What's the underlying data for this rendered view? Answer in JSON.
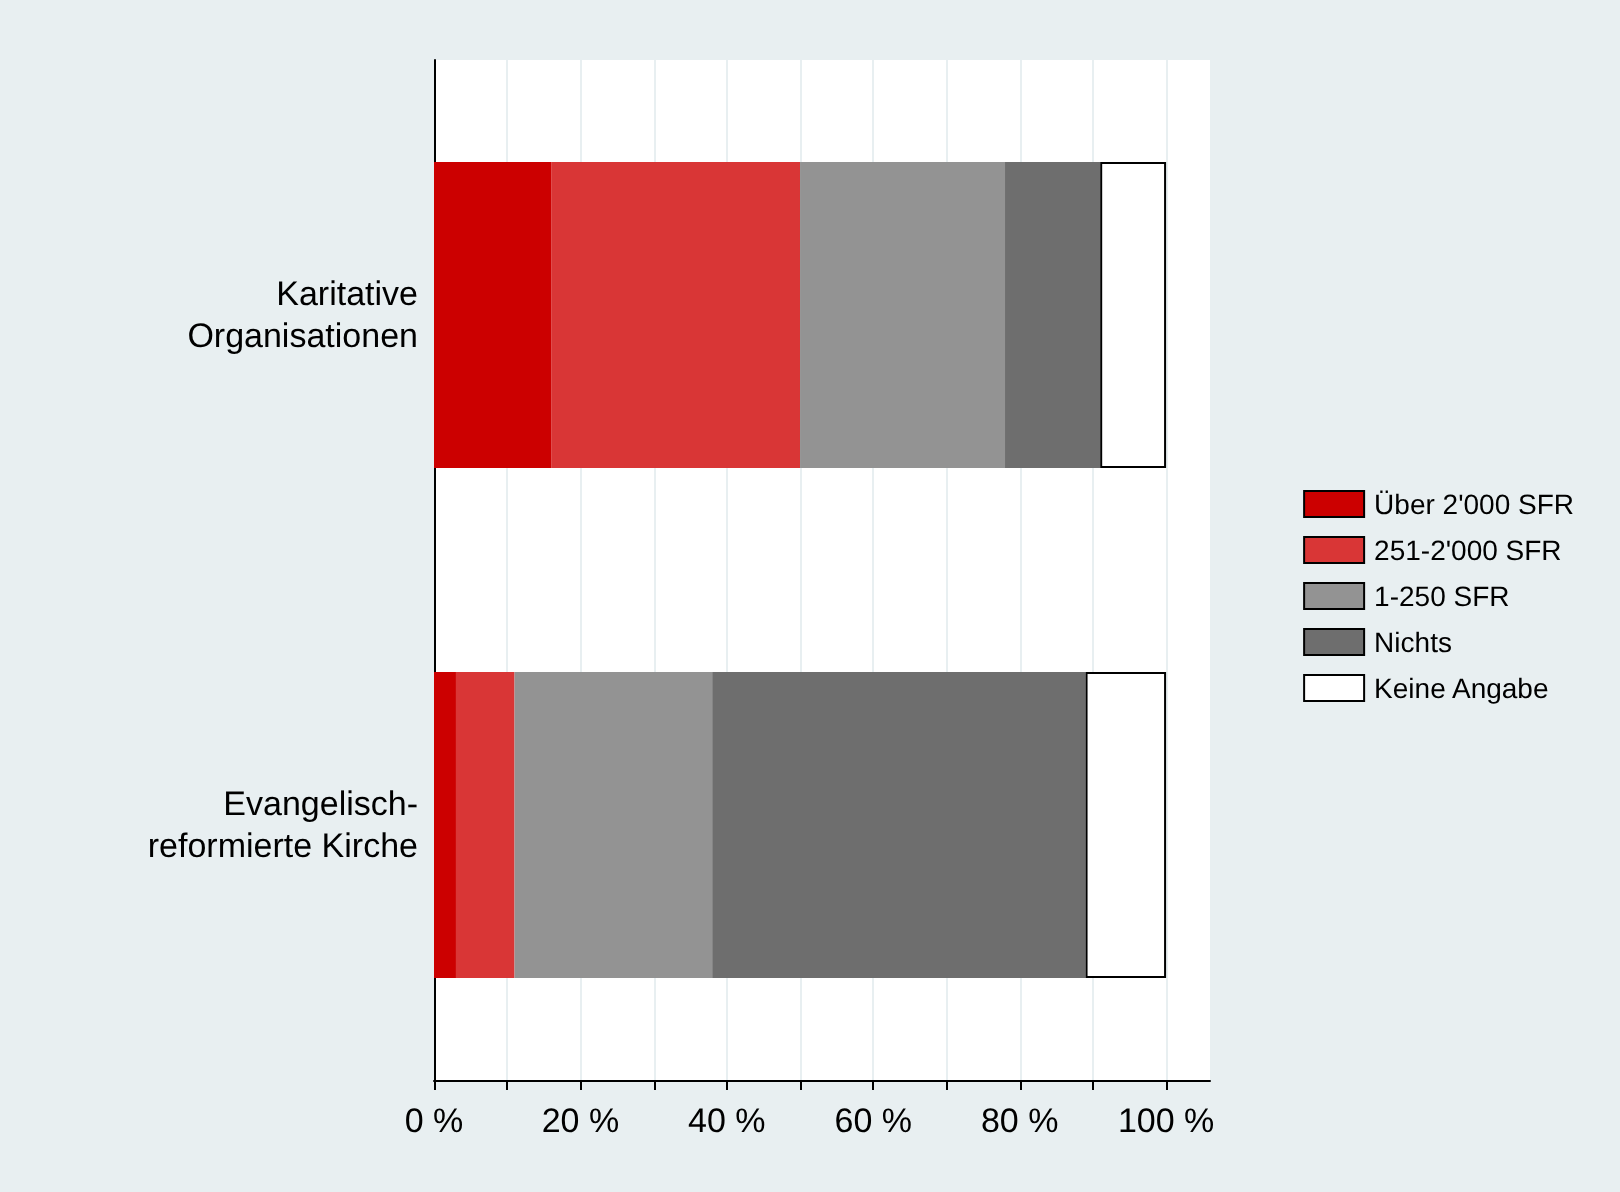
{
  "chart_data": {
    "type": "bar",
    "orientation": "horizontal",
    "stacked": true,
    "categories": [
      "Karitative\nOrganisationen",
      "Evangelisch-\nreformierte Kirche"
    ],
    "series": [
      {
        "name": "Über 2'000 SFR",
        "color": "#cc0000",
        "values": [
          16,
          3
        ]
      },
      {
        "name": "251-2'000 SFR",
        "color": "#d93636",
        "values": [
          34,
          8
        ]
      },
      {
        "name": "1-250 SFR",
        "color": "#939393",
        "values": [
          28,
          27
        ]
      },
      {
        "name": "Nichts",
        "color": "#6e6e6e",
        "values": [
          13,
          51
        ]
      },
      {
        "name": "Keine Angabe",
        "color": "#ffffff",
        "values": [
          9,
          11
        ]
      }
    ],
    "xlim": [
      0,
      106
    ],
    "xticks": [
      {
        "value": 0,
        "label": "0 %"
      },
      {
        "value": 10,
        "label": null
      },
      {
        "value": 20,
        "label": "20 %"
      },
      {
        "value": 30,
        "label": null
      },
      {
        "value": 40,
        "label": "40 %"
      },
      {
        "value": 50,
        "label": null
      },
      {
        "value": 60,
        "label": "60 %"
      },
      {
        "value": 70,
        "label": null
      },
      {
        "value": 80,
        "label": "80 %"
      },
      {
        "value": 90,
        "label": null
      },
      {
        "value": 100,
        "label": "100 %"
      }
    ],
    "grid": "x",
    "legend": "right"
  }
}
